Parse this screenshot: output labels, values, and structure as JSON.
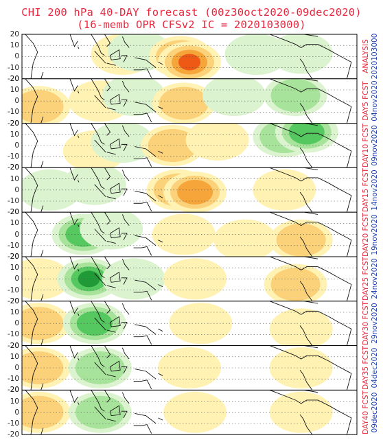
{
  "title": {
    "line1": "CHI 200 hPa 40-DAY forecast (00z30oct2020-09dec2020)",
    "line2": "(16-memb OPR CFSv2 IC = 2020103000)"
  },
  "y_ticks": [
    "20",
    "10",
    "0",
    "-10",
    "-20"
  ],
  "colors": {
    "title": "#e8263d",
    "date": "#1b3fb0",
    "pos1": "#fff2b3",
    "pos2": "#fbd27a",
    "pos3": "#f6a53a",
    "pos4": "#ee5a16",
    "neg1": "#dcf3cf",
    "neg2": "#a7e39a",
    "neg3": "#56c860",
    "neg4": "#1f9a36"
  },
  "panels": [
    {
      "label": "ANALYSIS",
      "date": "2020103000",
      "anomalies": [
        {
          "lon": 120,
          "lat": 2,
          "sign": 1,
          "level": 1
        },
        {
          "lon": 135,
          "lat": 5,
          "sign": -1,
          "level": 1
        },
        {
          "lon": 172,
          "lat": 0,
          "sign": 1,
          "level": 3
        },
        {
          "lon": 180,
          "lat": -5,
          "sign": 1,
          "level": 4
        },
        {
          "lon": 240,
          "lat": 2,
          "sign": -1,
          "level": 1
        },
        {
          "lon": 280,
          "lat": 3,
          "sign": -1,
          "level": 1
        }
      ]
    },
    {
      "label": "DAY5 FCST",
      "date": "04nov2020",
      "anomalies": [
        {
          "lon": 45,
          "lat": -5,
          "sign": 1,
          "level": 2
        },
        {
          "lon": 100,
          "lat": 0,
          "sign": 1,
          "level": 1
        },
        {
          "lon": 130,
          "lat": 5,
          "sign": -1,
          "level": 1
        },
        {
          "lon": 175,
          "lat": -2,
          "sign": 1,
          "level": 2
        },
        {
          "lon": 220,
          "lat": 5,
          "sign": -1,
          "level": 1
        },
        {
          "lon": 275,
          "lat": 5,
          "sign": -1,
          "level": 2
        }
      ]
    },
    {
      "label": "DAY10 FCST",
      "date": "09nov2020",
      "anomalies": [
        {
          "lon": 95,
          "lat": -5,
          "sign": 1,
          "level": 1
        },
        {
          "lon": 120,
          "lat": 3,
          "sign": -1,
          "level": 1
        },
        {
          "lon": 165,
          "lat": 0,
          "sign": 1,
          "level": 2
        },
        {
          "lon": 205,
          "lat": 5,
          "sign": 1,
          "level": 1
        },
        {
          "lon": 265,
          "lat": 8,
          "sign": -1,
          "level": 2
        },
        {
          "lon": 285,
          "lat": 12,
          "sign": -1,
          "level": 3
        }
      ]
    },
    {
      "label": "DAY15 FCST",
      "date": "14nov2020",
      "anomalies": [
        {
          "lon": 55,
          "lat": 0,
          "sign": -1,
          "level": 1
        },
        {
          "lon": 95,
          "lat": 5,
          "sign": -1,
          "level": 1
        },
        {
          "lon": 170,
          "lat": 0,
          "sign": 1,
          "level": 2
        },
        {
          "lon": 185,
          "lat": -2,
          "sign": 1,
          "level": 3
        },
        {
          "lon": 265,
          "lat": 0,
          "sign": 1,
          "level": 1
        }
      ]
    },
    {
      "label": "DAY20 FCST",
      "date": "19nov2020",
      "anomalies": [
        {
          "lon": 85,
          "lat": 0,
          "sign": -1,
          "level": 3
        },
        {
          "lon": 110,
          "lat": 5,
          "sign": -1,
          "level": 1
        },
        {
          "lon": 175,
          "lat": 0,
          "sign": 1,
          "level": 1
        },
        {
          "lon": 230,
          "lat": -5,
          "sign": 1,
          "level": 1
        },
        {
          "lon": 280,
          "lat": -5,
          "sign": 1,
          "level": 2
        }
      ]
    },
    {
      "label": "DAY25 FCST",
      "date": "24nov2020",
      "anomalies": [
        {
          "lon": 45,
          "lat": 0,
          "sign": 1,
          "level": 1
        },
        {
          "lon": 90,
          "lat": 0,
          "sign": -1,
          "level": 4
        },
        {
          "lon": 130,
          "lat": 0,
          "sign": -1,
          "level": 1
        },
        {
          "lon": 185,
          "lat": 0,
          "sign": 1,
          "level": 1
        },
        {
          "lon": 275,
          "lat": -5,
          "sign": 1,
          "level": 2
        }
      ]
    },
    {
      "label": "DAY30 FCST",
      "date": "29nov2020",
      "anomalies": [
        {
          "lon": 45,
          "lat": 0,
          "sign": 1,
          "level": 2
        },
        {
          "lon": 95,
          "lat": 0,
          "sign": -1,
          "level": 3
        },
        {
          "lon": 190,
          "lat": 0,
          "sign": 1,
          "level": 1
        },
        {
          "lon": 280,
          "lat": -5,
          "sign": 1,
          "level": 1
        }
      ]
    },
    {
      "label": "DAY35 FCST",
      "date": "04dec2020",
      "anomalies": [
        {
          "lon": 45,
          "lat": 0,
          "sign": 1,
          "level": 2
        },
        {
          "lon": 100,
          "lat": 0,
          "sign": -1,
          "level": 2
        },
        {
          "lon": 180,
          "lat": 0,
          "sign": 1,
          "level": 1
        },
        {
          "lon": 280,
          "lat": 0,
          "sign": 1,
          "level": 1
        }
      ]
    },
    {
      "label": "DAY40 FCST",
      "date": "09dec2020",
      "anomalies": [
        {
          "lon": 45,
          "lat": 0,
          "sign": 1,
          "level": 2
        },
        {
          "lon": 100,
          "lat": 0,
          "sign": -1,
          "level": 2
        },
        {
          "lon": 185,
          "lat": 0,
          "sign": 1,
          "level": 1
        },
        {
          "lon": 280,
          "lat": 0,
          "sign": 1,
          "level": 1
        }
      ]
    }
  ]
}
